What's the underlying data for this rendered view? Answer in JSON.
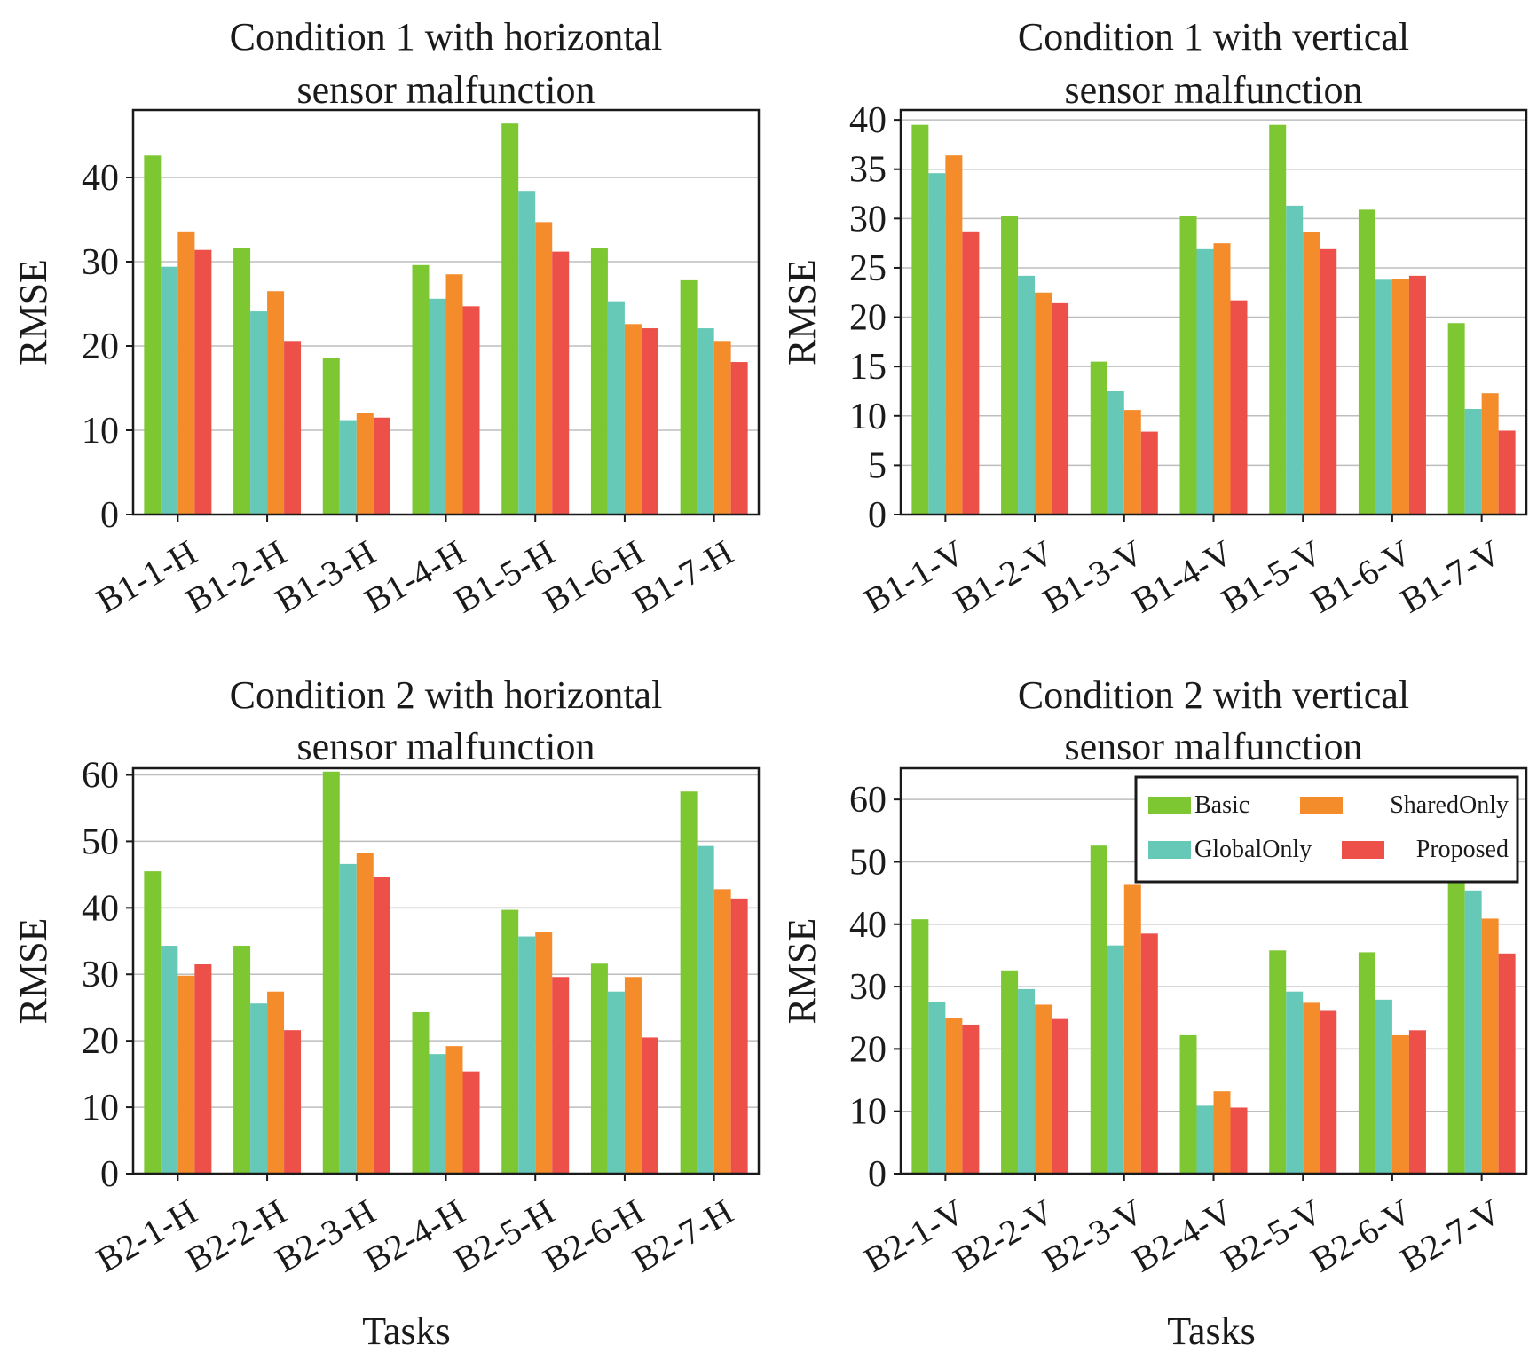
{
  "colors": {
    "Basic": "#7dc832",
    "GlobalOnly": "#66c9b7",
    "SharedOnly": "#f48c2c",
    "Proposed": "#ec5048",
    "grid": "#bdbdbd",
    "axis": "#1a1a1a"
  },
  "figure": {
    "xlabel_bottom_left": "Tasks",
    "xlabel_bottom_right": "Tasks"
  },
  "chart_data": [
    {
      "type": "bar",
      "title_lines": [
        "Condition 1 with horizontal",
        "sensor malfunction"
      ],
      "ylabel": "RMSE",
      "xlabel": "",
      "ylim": [
        0,
        48
      ],
      "yticks": [
        0,
        10,
        20,
        30,
        40
      ],
      "grid": true,
      "legend": null,
      "categories": [
        "B1-1-H",
        "B1-2-H",
        "B1-3-H",
        "B1-4-H",
        "B1-5-H",
        "B1-6-H",
        "B1-7-H"
      ],
      "series": [
        {
          "name": "Basic",
          "values": [
            42.6,
            31.6,
            18.6,
            29.6,
            46.4,
            31.6,
            27.8
          ]
        },
        {
          "name": "GlobalOnly",
          "values": [
            29.4,
            24.1,
            11.2,
            25.6,
            38.4,
            25.3,
            22.1
          ]
        },
        {
          "name": "SharedOnly",
          "values": [
            33.6,
            26.5,
            12.1,
            28.5,
            34.7,
            22.6,
            20.6
          ]
        },
        {
          "name": "Proposed",
          "values": [
            31.4,
            20.6,
            11.5,
            24.7,
            31.2,
            22.1,
            18.1
          ]
        }
      ]
    },
    {
      "type": "bar",
      "title_lines": [
        "Condition 1 with vertical",
        "sensor malfunction"
      ],
      "ylabel": "RMSE",
      "xlabel": "",
      "ylim": [
        0,
        41
      ],
      "yticks": [
        0,
        5,
        10,
        15,
        20,
        25,
        30,
        35,
        40
      ],
      "grid": true,
      "legend": null,
      "categories": [
        "B1-1-V",
        "B1-2-V",
        "B1-3-V",
        "B1-4-V",
        "B1-5-V",
        "B1-6-V",
        "B1-7-V"
      ],
      "series": [
        {
          "name": "Basic",
          "values": [
            39.5,
            30.3,
            15.5,
            30.3,
            39.5,
            30.9,
            19.4
          ]
        },
        {
          "name": "GlobalOnly",
          "values": [
            34.6,
            24.2,
            12.5,
            26.9,
            31.3,
            23.8,
            10.7
          ]
        },
        {
          "name": "SharedOnly",
          "values": [
            36.4,
            22.5,
            10.6,
            27.5,
            28.6,
            23.9,
            12.3
          ]
        },
        {
          "name": "Proposed",
          "values": [
            28.7,
            21.5,
            8.4,
            21.7,
            26.9,
            24.2,
            8.5
          ]
        }
      ]
    },
    {
      "type": "bar",
      "title_lines": [
        "Condition 2 with horizontal",
        "sensor malfunction"
      ],
      "ylabel": "RMSE",
      "xlabel": "Tasks",
      "ylim": [
        0,
        61
      ],
      "yticks": [
        0,
        10,
        20,
        30,
        40,
        50,
        60
      ],
      "grid": true,
      "legend": null,
      "categories": [
        "B2-1-H",
        "B2-2-H",
        "B2-3-H",
        "B2-4-H",
        "B2-5-H",
        "B2-6-H",
        "B2-7-H"
      ],
      "series": [
        {
          "name": "Basic",
          "values": [
            45.5,
            34.3,
            60.5,
            24.3,
            39.7,
            31.6,
            57.5
          ]
        },
        {
          "name": "GlobalOnly",
          "values": [
            34.3,
            25.6,
            46.6,
            18.0,
            35.7,
            27.4,
            49.3
          ]
        },
        {
          "name": "SharedOnly",
          "values": [
            29.8,
            27.4,
            48.2,
            19.2,
            36.4,
            29.6,
            42.8
          ]
        },
        {
          "name": "Proposed",
          "values": [
            31.5,
            21.6,
            44.6,
            15.4,
            29.6,
            20.5,
            41.4
          ]
        }
      ]
    },
    {
      "type": "bar",
      "title_lines": [
        "Condition 2 with vertical",
        "sensor malfunction"
      ],
      "ylabel": "RMSE",
      "xlabel": "Tasks",
      "ylim": [
        0,
        65
      ],
      "yticks": [
        0,
        10,
        20,
        30,
        40,
        50,
        60
      ],
      "grid": true,
      "legend": "top-right",
      "categories": [
        "B2-1-V",
        "B2-2-V",
        "B2-3-V",
        "B2-4-V",
        "B2-5-V",
        "B2-6-V",
        "B2-7-V"
      ],
      "series": [
        {
          "name": "Basic",
          "values": [
            40.8,
            32.6,
            52.6,
            22.2,
            35.8,
            35.5,
            48.0
          ]
        },
        {
          "name": "GlobalOnly",
          "values": [
            27.6,
            29.6,
            36.6,
            10.9,
            29.2,
            27.9,
            45.4
          ]
        },
        {
          "name": "SharedOnly",
          "values": [
            25.0,
            27.1,
            46.3,
            13.2,
            27.4,
            22.2,
            40.9
          ]
        },
        {
          "name": "Proposed",
          "values": [
            23.9,
            24.8,
            38.5,
            10.6,
            26.1,
            23.0,
            35.3
          ]
        }
      ]
    }
  ]
}
